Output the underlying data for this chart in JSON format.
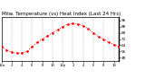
{
  "title": "Milw. Temperature (vs) Heat Index (Last 24 Hrs)",
  "title_fontsize": 4.0,
  "bg_color": "#ffffff",
  "plot_bg_color": "#ffffff",
  "line_color": "#ff0000",
  "grid_color": "#888888",
  "text_color": "#000000",
  "hours": [
    0,
    1,
    2,
    3,
    4,
    5,
    6,
    7,
    8,
    9,
    10,
    11,
    12,
    13,
    14,
    15,
    16,
    17,
    18,
    19,
    20,
    21,
    22,
    23
  ],
  "temp": [
    62,
    58,
    55,
    54,
    54,
    56,
    62,
    68,
    72,
    76,
    80,
    84,
    88,
    91,
    92,
    91,
    89,
    85,
    80,
    75,
    72,
    68,
    65,
    62
  ],
  "ylim": [
    44,
    100
  ],
  "yticks": [
    48,
    56,
    64,
    72,
    80,
    88,
    96
  ],
  "ytick_labels": [
    "48",
    "56",
    "64",
    "72",
    "80",
    "88",
    "96"
  ],
  "xtick_positions": [
    0,
    2,
    4,
    6,
    8,
    10,
    12,
    14,
    16,
    18,
    20,
    22
  ],
  "xtick_labels": [
    "12a",
    "2",
    "4",
    "6",
    "8",
    "10",
    "12p",
    "2",
    "4",
    "6",
    "8",
    "10"
  ],
  "vgrid_positions": [
    2,
    4,
    6,
    8,
    10,
    12,
    14,
    16,
    18,
    20,
    22
  ],
  "marker_size": 1.8,
  "line_width": 0.7,
  "figwidth": 1.6,
  "figheight": 0.87,
  "dpi": 100
}
